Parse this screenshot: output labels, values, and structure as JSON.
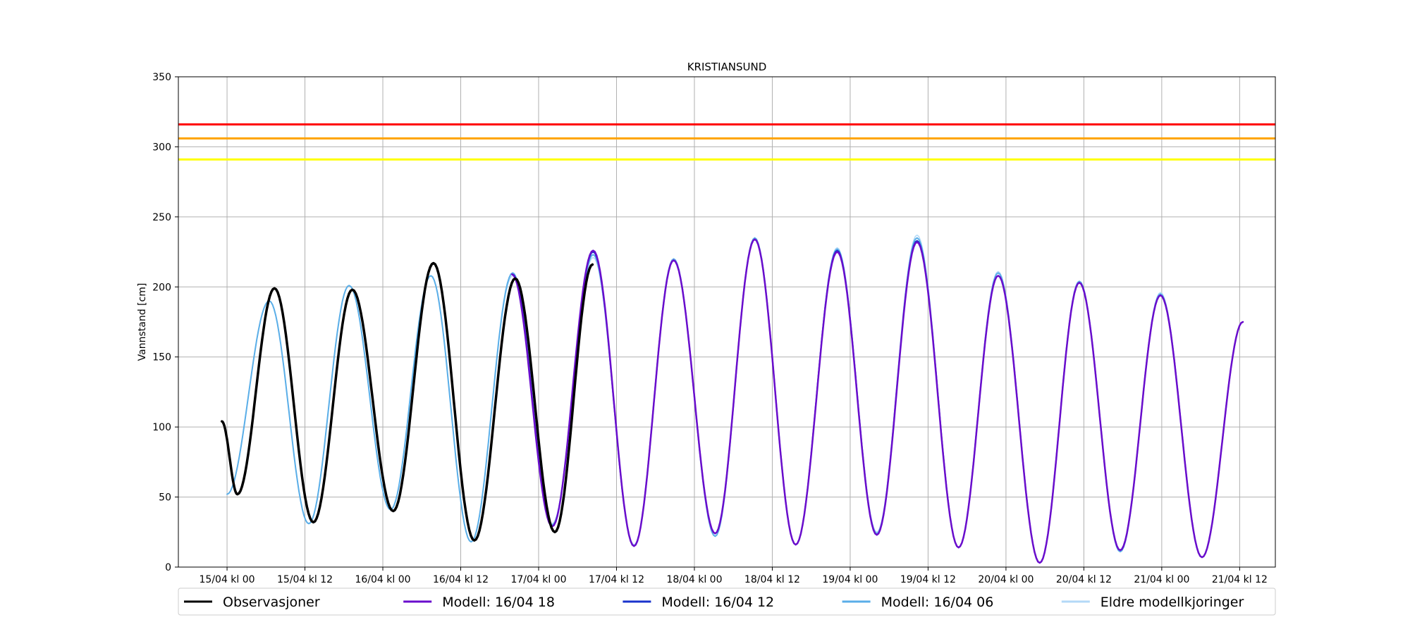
{
  "chart_data": {
    "type": "line",
    "title": "KRISTIANSUND",
    "xlabel": "",
    "ylabel": "Vannstand [cm]",
    "x_unit": "hours from 15/04 kl 00",
    "xlim": [
      -7.5,
      161.5
    ],
    "ylim": [
      0,
      350
    ],
    "y_ticks": [
      0,
      50,
      100,
      150,
      200,
      250,
      300,
      350
    ],
    "x_ticks": [
      {
        "t": 0,
        "label": "15/04 kl 00"
      },
      {
        "t": 12,
        "label": "15/04 kl 12"
      },
      {
        "t": 24,
        "label": "16/04 kl 00"
      },
      {
        "t": 36,
        "label": "16/04 kl 12"
      },
      {
        "t": 48,
        "label": "17/04 kl 00"
      },
      {
        "t": 60,
        "label": "17/04 kl 12"
      },
      {
        "t": 72,
        "label": "18/04 kl 00"
      },
      {
        "t": 84,
        "label": "18/04 kl 12"
      },
      {
        "t": 96,
        "label": "19/04 kl 00"
      },
      {
        "t": 108,
        "label": "19/04 kl 12"
      },
      {
        "t": 120,
        "label": "20/04 kl 00"
      },
      {
        "t": 132,
        "label": "20/04 kl 12"
      },
      {
        "t": 144,
        "label": "21/04 kl 00"
      },
      {
        "t": 156,
        "label": "21/04 kl 12"
      }
    ],
    "grid": true,
    "legend_position": "bottom",
    "thresholds": [
      {
        "value": 316,
        "color": "#ff0000"
      },
      {
        "value": 306,
        "color": "#ffa500"
      },
      {
        "value": 291,
        "color": "#ffff00"
      }
    ],
    "series": [
      {
        "name": "Eldre modellkjoringer",
        "color": "#b3d9f7",
        "width": 1.5,
        "points": [
          [
            0,
            52
          ],
          [
            6.5,
            190
          ],
          [
            12.6,
            31
          ],
          [
            18.8,
            201
          ],
          [
            25.2,
            41
          ],
          [
            31.4,
            208
          ],
          [
            37.6,
            18
          ],
          [
            44.0,
            208
          ],
          [
            50.1,
            31
          ],
          [
            56.4,
            221
          ],
          [
            62.7,
            16
          ],
          [
            68.8,
            219
          ],
          [
            75.2,
            22
          ],
          [
            81.3,
            235
          ],
          [
            87.6,
            16
          ],
          [
            94.0,
            228
          ],
          [
            100.1,
            25
          ],
          [
            106.3,
            237
          ],
          [
            112.7,
            14
          ],
          [
            118.8,
            211
          ],
          [
            125.2,
            3
          ],
          [
            131.3,
            204
          ],
          [
            137.6,
            11
          ],
          [
            143.8,
            196
          ],
          [
            150.2,
            7
          ],
          [
            156.5,
            175
          ]
        ]
      },
      {
        "name": "Modell: 16/04 06",
        "color": "#5aaee8",
        "width": 2,
        "points": [
          [
            0,
            52
          ],
          [
            6.5,
            190
          ],
          [
            12.6,
            31
          ],
          [
            18.8,
            201
          ],
          [
            25.2,
            41
          ],
          [
            31.4,
            208
          ],
          [
            37.6,
            18
          ],
          [
            44.0,
            210
          ],
          [
            50.1,
            30
          ],
          [
            56.4,
            223
          ],
          [
            62.7,
            15
          ],
          [
            68.8,
            220
          ],
          [
            75.2,
            22
          ],
          [
            81.3,
            235
          ],
          [
            87.6,
            16
          ],
          [
            94.0,
            227
          ],
          [
            100.1,
            24
          ],
          [
            106.3,
            235
          ],
          [
            112.7,
            14
          ],
          [
            118.8,
            210
          ],
          [
            125.2,
            3
          ],
          [
            131.3,
            204
          ],
          [
            137.6,
            11
          ],
          [
            143.8,
            195
          ],
          [
            150.2,
            7
          ],
          [
            156.5,
            175
          ]
        ]
      },
      {
        "name": "Modell: 16/04 12",
        "color": "#1a33cc",
        "width": 2,
        "points": [
          [
            44.0,
            209
          ],
          [
            50.1,
            29
          ],
          [
            56.4,
            225
          ],
          [
            62.7,
            15
          ],
          [
            68.8,
            219
          ],
          [
            75.2,
            24
          ],
          [
            81.3,
            234
          ],
          [
            87.6,
            16
          ],
          [
            94.0,
            226
          ],
          [
            100.1,
            23
          ],
          [
            106.3,
            233
          ],
          [
            112.7,
            14
          ],
          [
            118.8,
            208
          ],
          [
            125.2,
            3
          ],
          [
            131.3,
            203
          ],
          [
            137.6,
            12
          ],
          [
            143.8,
            194
          ],
          [
            150.2,
            7
          ],
          [
            156.5,
            175
          ]
        ]
      },
      {
        "name": "Modell: 16/04 18",
        "color": "#6a0dcc",
        "width": 2.5,
        "points": [
          [
            43.9,
            209
          ],
          [
            50.1,
            29
          ],
          [
            56.4,
            226
          ],
          [
            62.7,
            15
          ],
          [
            68.8,
            219
          ],
          [
            75.2,
            24
          ],
          [
            81.3,
            234
          ],
          [
            87.6,
            16
          ],
          [
            94.0,
            225
          ],
          [
            100.1,
            23
          ],
          [
            106.3,
            232
          ],
          [
            112.7,
            14
          ],
          [
            118.8,
            208
          ],
          [
            125.2,
            3
          ],
          [
            131.3,
            203
          ],
          [
            137.6,
            12
          ],
          [
            143.8,
            194
          ],
          [
            150.2,
            7
          ],
          [
            156.5,
            175
          ]
        ]
      },
      {
        "name": "Observasjoner",
        "color": "#000000",
        "width": 3.5,
        "points": [
          [
            -0.8,
            104
          ],
          [
            1.6,
            52
          ],
          [
            7.3,
            199
          ],
          [
            13.3,
            32
          ],
          [
            19.3,
            198
          ],
          [
            25.6,
            40
          ],
          [
            31.8,
            217
          ],
          [
            38.1,
            19
          ],
          [
            44.4,
            206
          ],
          [
            50.5,
            25
          ],
          [
            56.3,
            216
          ]
        ]
      }
    ],
    "legend": [
      {
        "label": "Observasjoner",
        "color": "#000000"
      },
      {
        "label": "Modell: 16/04 18",
        "color": "#6a0dcc"
      },
      {
        "label": "Modell: 16/04 12",
        "color": "#1a33cc"
      },
      {
        "label": "Modell: 16/04 06",
        "color": "#5aaee8"
      },
      {
        "label": "Eldre modellkjoringer",
        "color": "#b3d9f7"
      }
    ]
  }
}
